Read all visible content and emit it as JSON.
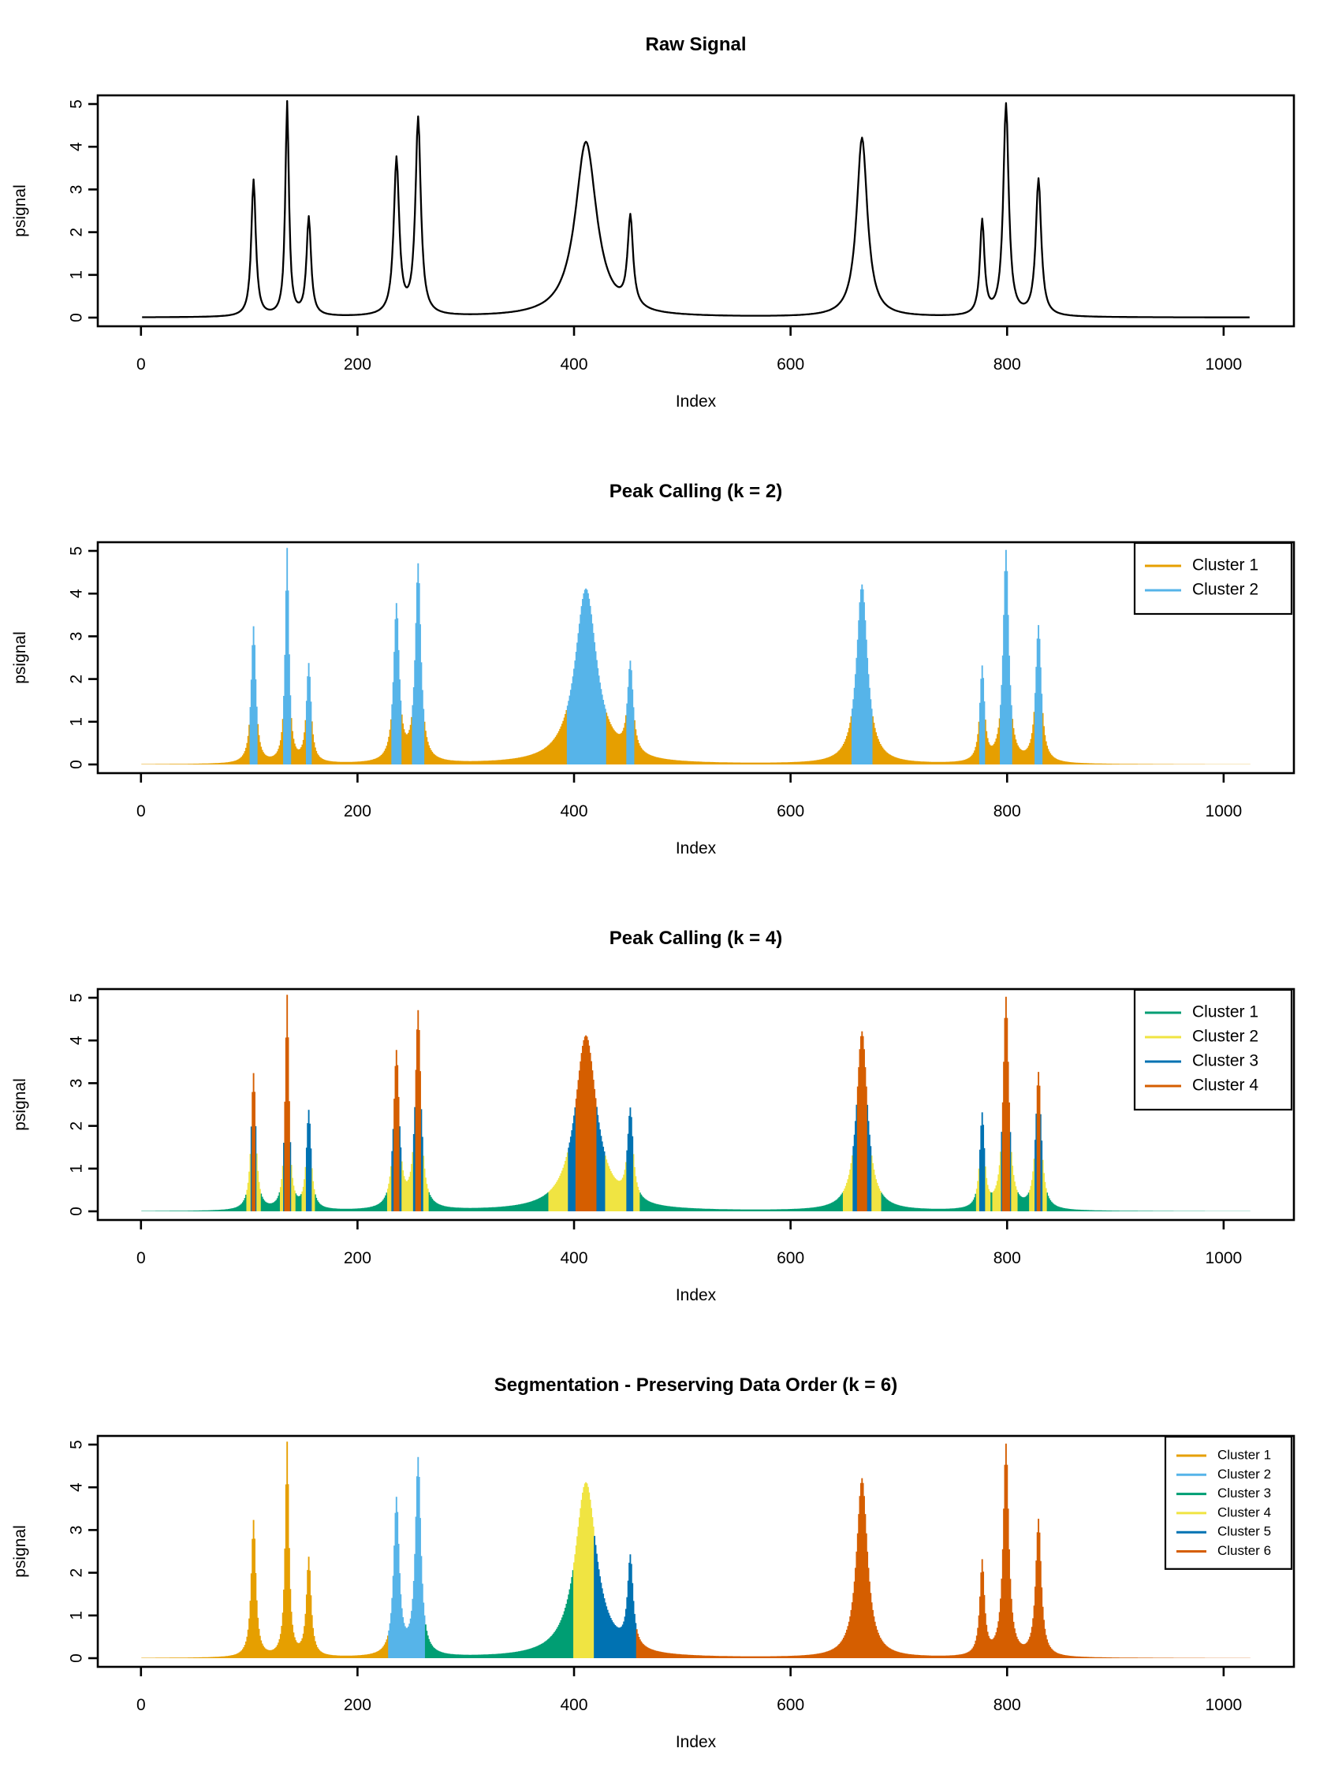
{
  "chart_data": {
    "type": "line",
    "figure_kind": "stacked-signal-cluster-panels",
    "n_points": 1024,
    "x": {
      "label": "Index",
      "ticks": [
        0,
        200,
        400,
        600,
        800,
        1000
      ],
      "range_shown": [
        1,
        1024
      ]
    },
    "y": {
      "label": "psignal",
      "ticks": [
        0,
        1,
        2,
        3,
        4,
        5
      ],
      "range_shown": [
        0,
        5
      ]
    },
    "palette": {
      "black": "#000000",
      "orange": "#E69F00",
      "skyblue": "#56B4E9",
      "green": "#009E73",
      "yellow": "#F0E442",
      "blue": "#0072B2",
      "vermillion": "#D55E00"
    },
    "signal_peaks": [
      {
        "center": 104,
        "height": 3.2,
        "hwhm": 2.5
      },
      {
        "center": 135,
        "height": 5.0,
        "hwhm": 2.0
      },
      {
        "center": 155,
        "height": 2.3,
        "hwhm": 2.5
      },
      {
        "center": 236,
        "height": 3.65,
        "hwhm": 3.0
      },
      {
        "center": 256,
        "height": 4.6,
        "hwhm": 3.0
      },
      {
        "center": 411,
        "height": 4.1,
        "hwhm": 12.0
      },
      {
        "center": 452,
        "height": 2.1,
        "hwhm": 3.0
      },
      {
        "center": 666,
        "height": 4.2,
        "hwhm": 6.0
      },
      {
        "center": 777,
        "height": 2.2,
        "hwhm": 2.5
      },
      {
        "center": 799,
        "height": 4.95,
        "hwhm": 3.0
      },
      {
        "center": 829,
        "height": 3.2,
        "hwhm": 3.0
      }
    ],
    "panels": [
      {
        "title": "Raw Signal",
        "plot_type": "line",
        "line_color": "black"
      },
      {
        "title": "Peak Calling (k = 2)",
        "plot_type": "h-bars",
        "cluster_by": "value",
        "value_thresholds": [
          1.3
        ],
        "cluster_colors": [
          "orange",
          "skyblue"
        ],
        "legend": {
          "size": "normal",
          "labels": [
            "Cluster 1",
            "Cluster 2"
          ],
          "colors": [
            "orange",
            "skyblue"
          ]
        }
      },
      {
        "title": "Peak Calling (k = 4)",
        "plot_type": "h-bars",
        "cluster_by": "value",
        "value_thresholds": [
          0.45,
          1.4,
          2.5
        ],
        "cluster_colors": [
          "green",
          "yellow",
          "blue",
          "vermillion"
        ],
        "legend": {
          "size": "normal",
          "labels": [
            "Cluster 1",
            "Cluster 2",
            "Cluster 3",
            "Cluster 4"
          ],
          "colors": [
            "green",
            "yellow",
            "blue",
            "vermillion"
          ]
        }
      },
      {
        "title": "Segmentation - Preserving Data Order (k = 6)",
        "plot_type": "h-bars",
        "cluster_by": "index",
        "index_boundaries": [
          229,
          263,
          400,
          419,
          458
        ],
        "cluster_colors": [
          "orange",
          "skyblue",
          "green",
          "yellow",
          "blue",
          "vermillion"
        ],
        "legend": {
          "size": "small",
          "labels": [
            "Cluster 1",
            "Cluster 2",
            "Cluster 3",
            "Cluster 4",
            "Cluster 5",
            "Cluster 6"
          ],
          "colors": [
            "orange",
            "skyblue",
            "green",
            "yellow",
            "blue",
            "vermillion"
          ]
        }
      }
    ]
  }
}
